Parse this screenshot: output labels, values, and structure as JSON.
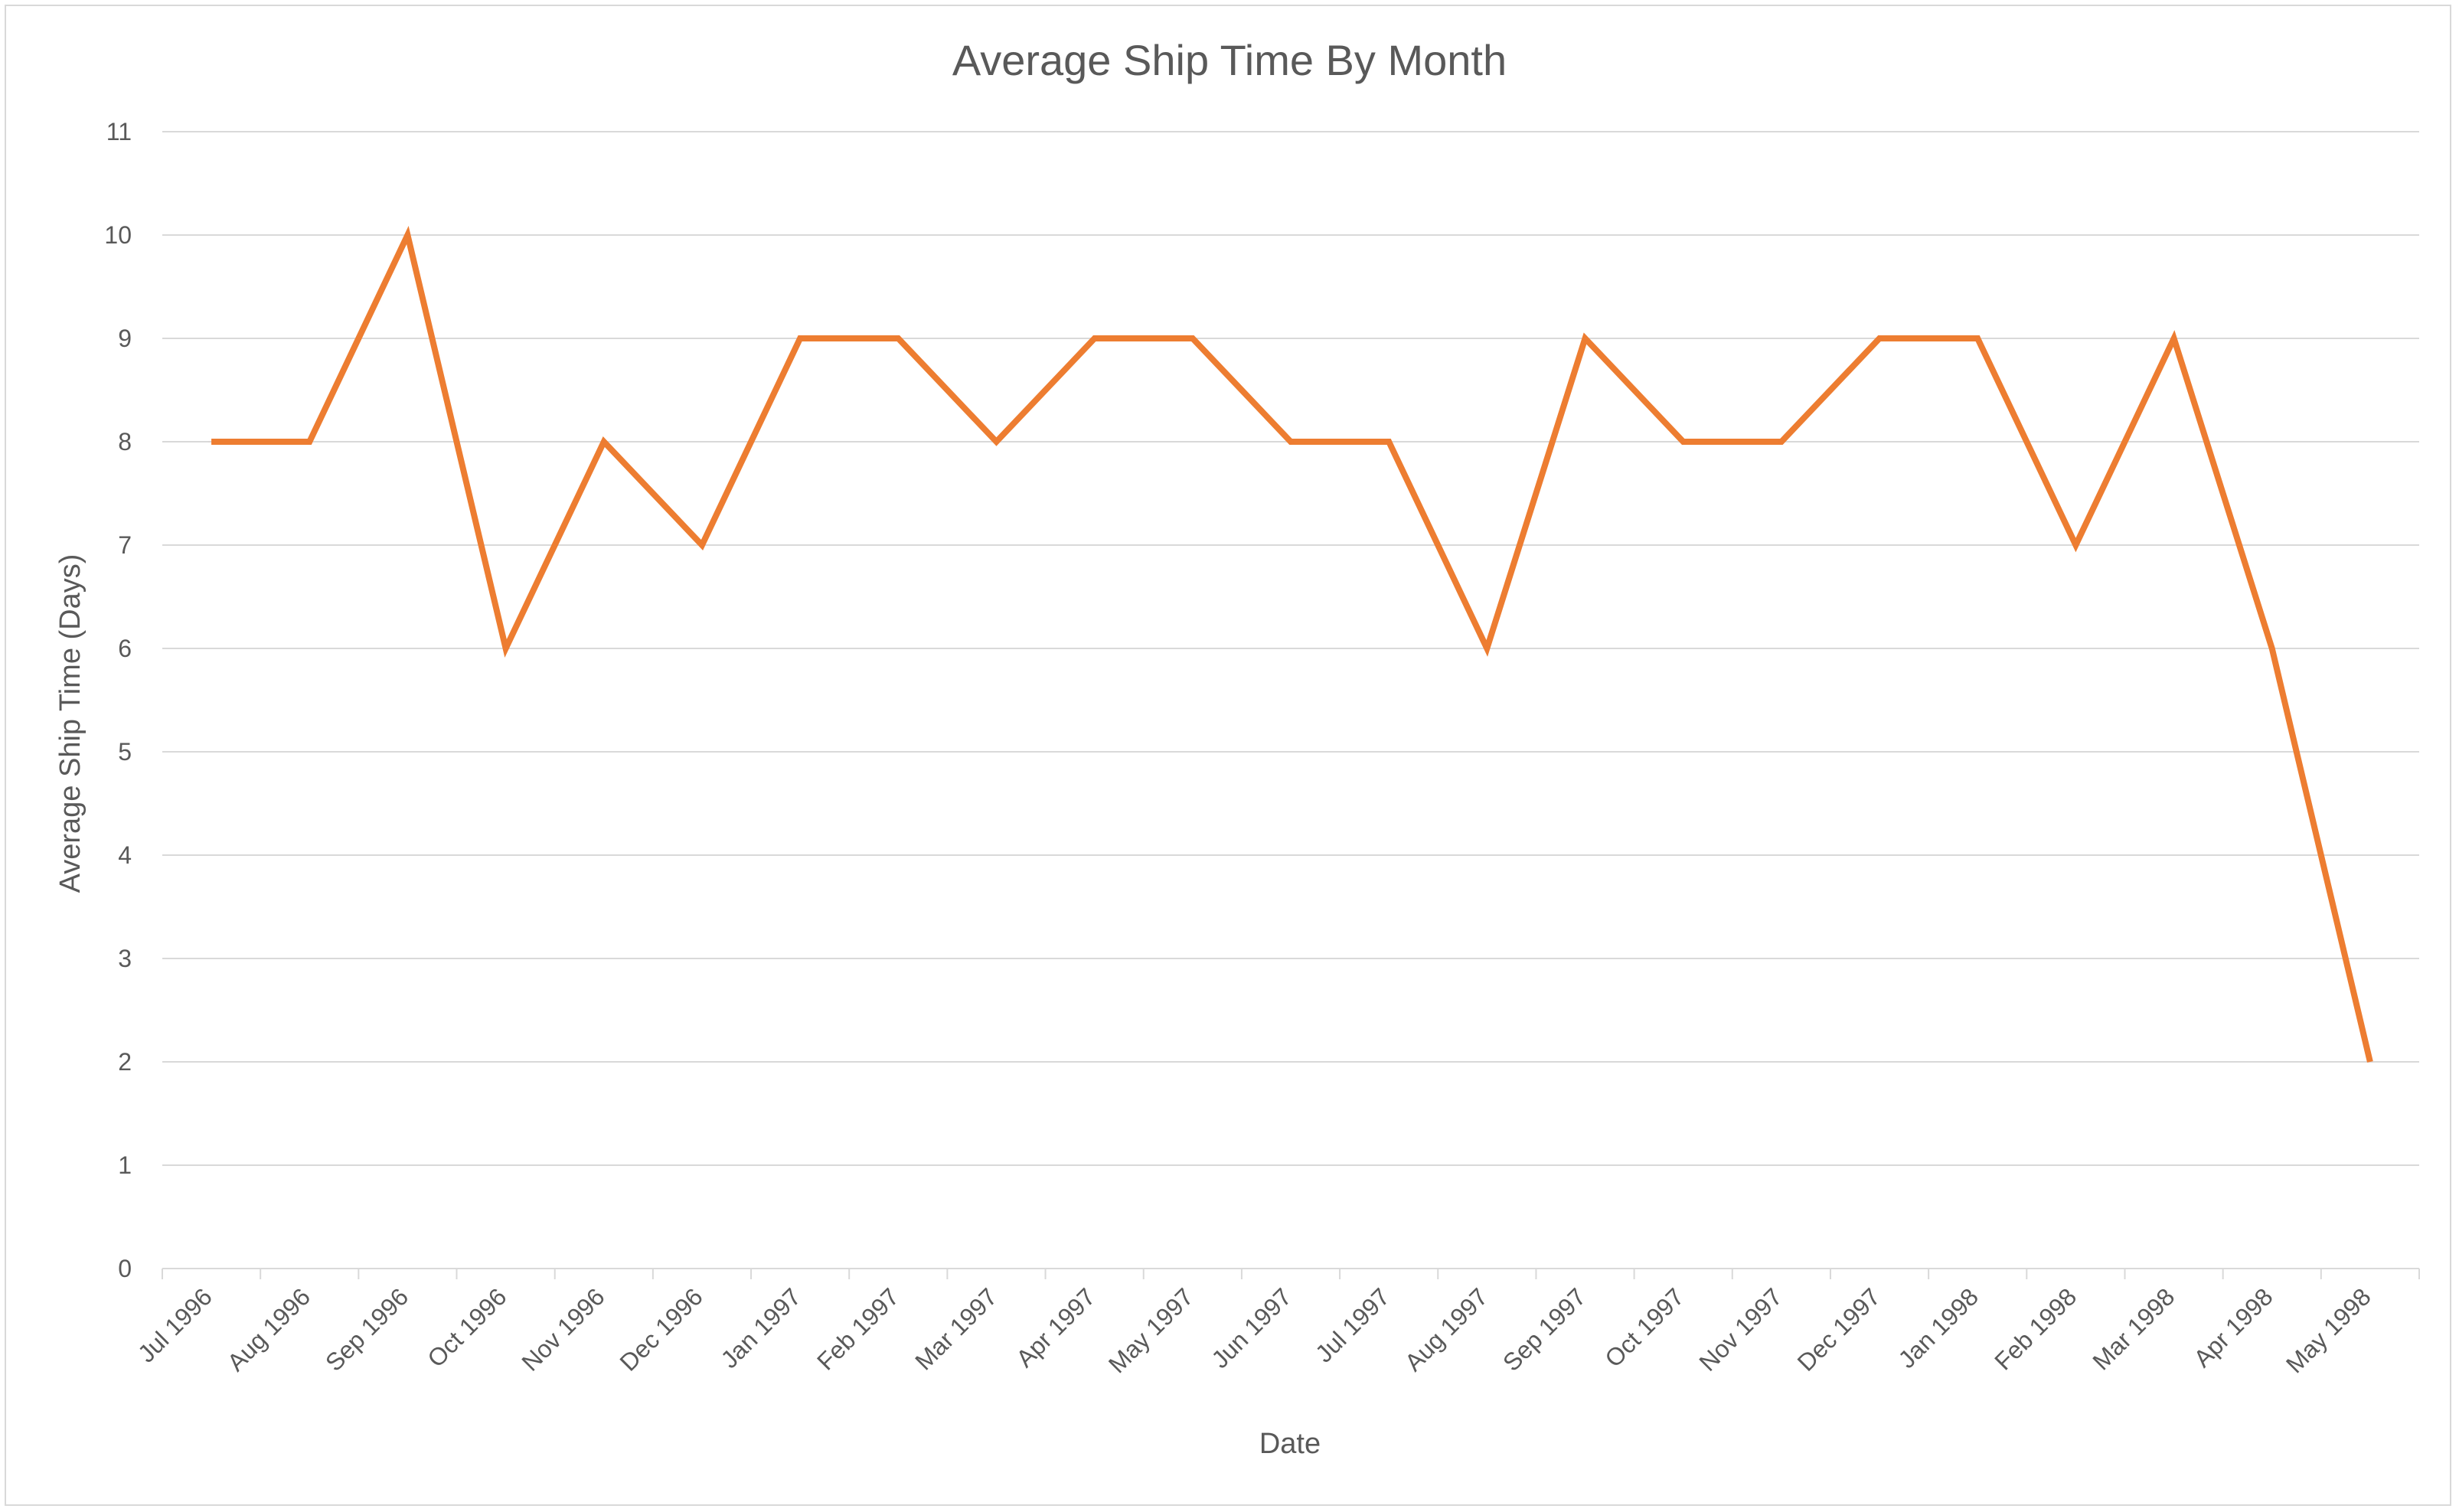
{
  "chart_data": {
    "type": "line",
    "title": "Average Ship Time By Month",
    "xlabel": "Date",
    "ylabel": "Average Ship Time (Days)",
    "ylim": [
      0,
      11
    ],
    "yticks": [
      0,
      1,
      2,
      3,
      4,
      5,
      6,
      7,
      8,
      9,
      10,
      11
    ],
    "grid": true,
    "legend": "none",
    "categories": [
      "Jul 1996",
      "Aug 1996",
      "Sep 1996",
      "Oct 1996",
      "Nov 1996",
      "Dec 1996",
      "Jan 1997",
      "Feb 1997",
      "Mar 1997",
      "Apr 1997",
      "May 1997",
      "Jun 1997",
      "Jul 1997",
      "Aug 1997",
      "Sep 1997",
      "Oct 1997",
      "Nov 1997",
      "Dec 1997",
      "Jan 1998",
      "Feb 1998",
      "Mar 1998",
      "Apr 1998",
      "May 1998"
    ],
    "series": [
      {
        "values": [
          8,
          8,
          10,
          6,
          8,
          7,
          9,
          9,
          8,
          9,
          9,
          8,
          8,
          6,
          9,
          8,
          8,
          9,
          9,
          7,
          9,
          6,
          2
        ],
        "color": "#ed7d31"
      }
    ],
    "colors": {
      "line": "#ed7d31",
      "grid": "#d9d9d9",
      "text": "#595959",
      "border": "#d9d9d9"
    }
  }
}
